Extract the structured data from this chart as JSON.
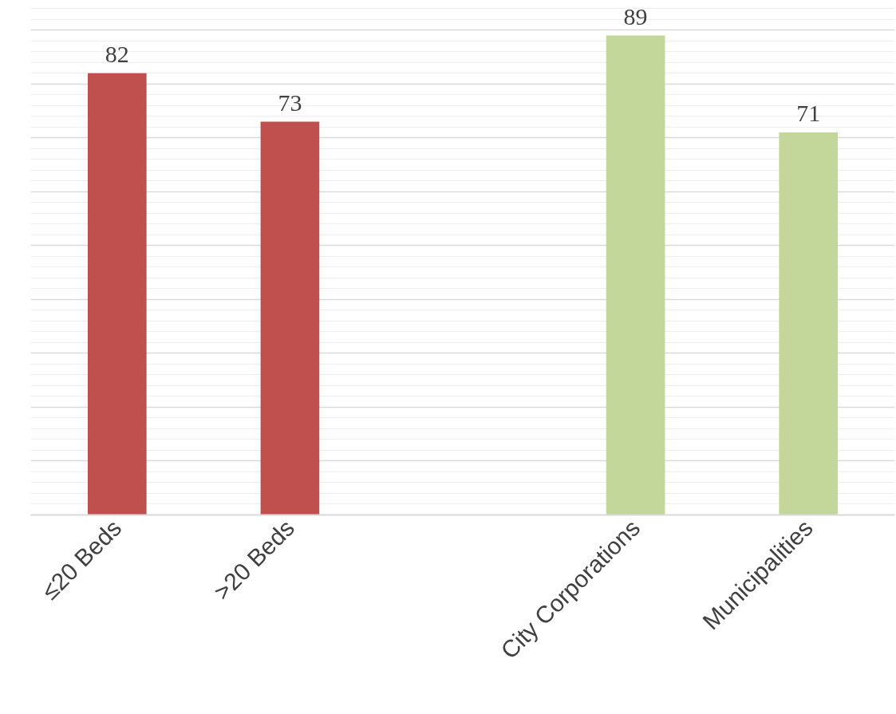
{
  "chart_data": {
    "type": "bar",
    "categories": [
      "≤20 Beds",
      ">20 Beds",
      null,
      "City Corporations",
      "Municipalities"
    ],
    "values": [
      82,
      73,
      null,
      89,
      71
    ],
    "colors": [
      "#c0504d",
      "#c0504d",
      null,
      "#c4d79b",
      "#c4d79b"
    ],
    "grid": "y",
    "tick_labels": "x",
    "data_labels": true
  }
}
